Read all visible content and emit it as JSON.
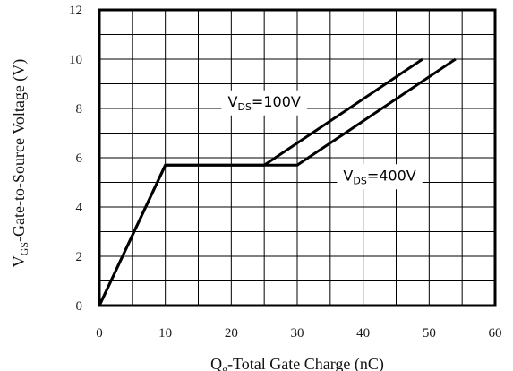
{
  "chart_data": {
    "type": "line",
    "xlabel": {
      "main": "Q",
      "sub": "g",
      "rest": "-Total Gate Charge (nC)"
    },
    "ylabel": {
      "main": "V",
      "sub": "GS",
      "rest": "-Gate-to-Source Voltage (V)"
    },
    "xlim": [
      0,
      60
    ],
    "ylim": [
      0,
      12
    ],
    "x_ticks": [
      0,
      10,
      20,
      30,
      40,
      50,
      60
    ],
    "y_ticks": [
      0,
      2,
      4,
      6,
      8,
      10,
      12
    ],
    "grid": true,
    "series": [
      {
        "name": "VDS=100V",
        "points": [
          [
            0,
            0
          ],
          [
            10,
            5.7
          ],
          [
            25,
            5.7
          ],
          [
            49,
            10
          ]
        ]
      },
      {
        "name": "VDS=400V",
        "points": [
          [
            0,
            0
          ],
          [
            10,
            5.7
          ],
          [
            30,
            5.7
          ],
          [
            54,
            10
          ]
        ]
      }
    ],
    "annotations": [
      {
        "main": "V",
        "sub": "DS",
        "rest": "=100V",
        "x": 25,
        "y": 8.3
      },
      {
        "main": "V",
        "sub": "DS",
        "rest": "=400V",
        "x": 42.5,
        "y": 5.3
      }
    ],
    "colors": {
      "line": "#000000",
      "grid": "#000000",
      "frame": "#000000"
    }
  }
}
